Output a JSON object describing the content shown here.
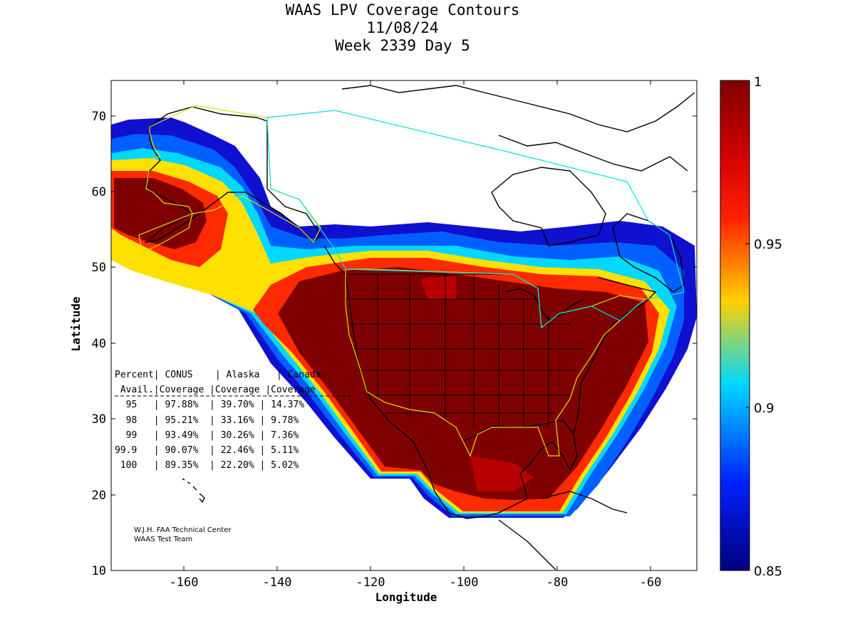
{
  "titles": {
    "line1": "WAAS LPV Coverage Contours",
    "line2": "11/08/24",
    "line3": "Week 2339 Day 5"
  },
  "axes": {
    "xlabel": "Longitude",
    "ylabel": "Latitude",
    "x_ticks": [
      "-160",
      "-140",
      "-120",
      "-100",
      "-80",
      "-60"
    ],
    "y_ticks": [
      "10",
      "20",
      "30",
      "40",
      "50",
      "60",
      "70"
    ]
  },
  "colorbar": {
    "ticks": [
      "1",
      "0.95",
      "0.9",
      "0.85"
    ],
    "colors": {
      "top": "#7f0000",
      "high": "#ff2000",
      "mid_high": "#ffd000",
      "mid": "#00d8ff",
      "low": "#0020ff",
      "bottom": "#00007f"
    }
  },
  "table": {
    "header1": "Percent| CONUS    | Alaska   | Canada",
    "header2": " Avail.|Coverage |Coverage |Coverage",
    "rows": [
      "  95   | 97.88%  | 39.70% | 14.37%",
      "  98   | 95.21%  | 33.16% | 9.78%",
      "  99   | 93.49%  | 30.26% | 7.36%",
      "99.9   | 90.07%  | 22.46% | 5.11%",
      " 100   | 89.35%  | 22.20% | 5.02%"
    ]
  },
  "credits": {
    "line1": "W.J.H. FAA Technical Center",
    "line2": "WAAS Test Team"
  },
  "chart_data": {
    "type": "heatmap",
    "title": "WAAS LPV Coverage Contours",
    "xlabel": "Longitude",
    "ylabel": "Latitude",
    "xlim": [
      -175,
      -50
    ],
    "ylim": [
      10,
      75
    ],
    "color_range": [
      0.85,
      1
    ],
    "table": {
      "columns": [
        "Percent Avail.",
        "CONUS Coverage",
        "Alaska Coverage",
        "Canada Coverage"
      ],
      "rows": [
        [
          "95",
          "97.88%",
          "39.70%",
          "14.37%"
        ],
        [
          "98",
          "95.21%",
          "33.16%",
          "9.78%"
        ],
        [
          "99",
          "93.49%",
          "30.26%",
          "7.36%"
        ],
        [
          "99.9",
          "90.07%",
          "22.46%",
          "5.11%"
        ],
        [
          "100",
          "89.35%",
          "22.20%",
          "5.02%"
        ]
      ]
    }
  }
}
